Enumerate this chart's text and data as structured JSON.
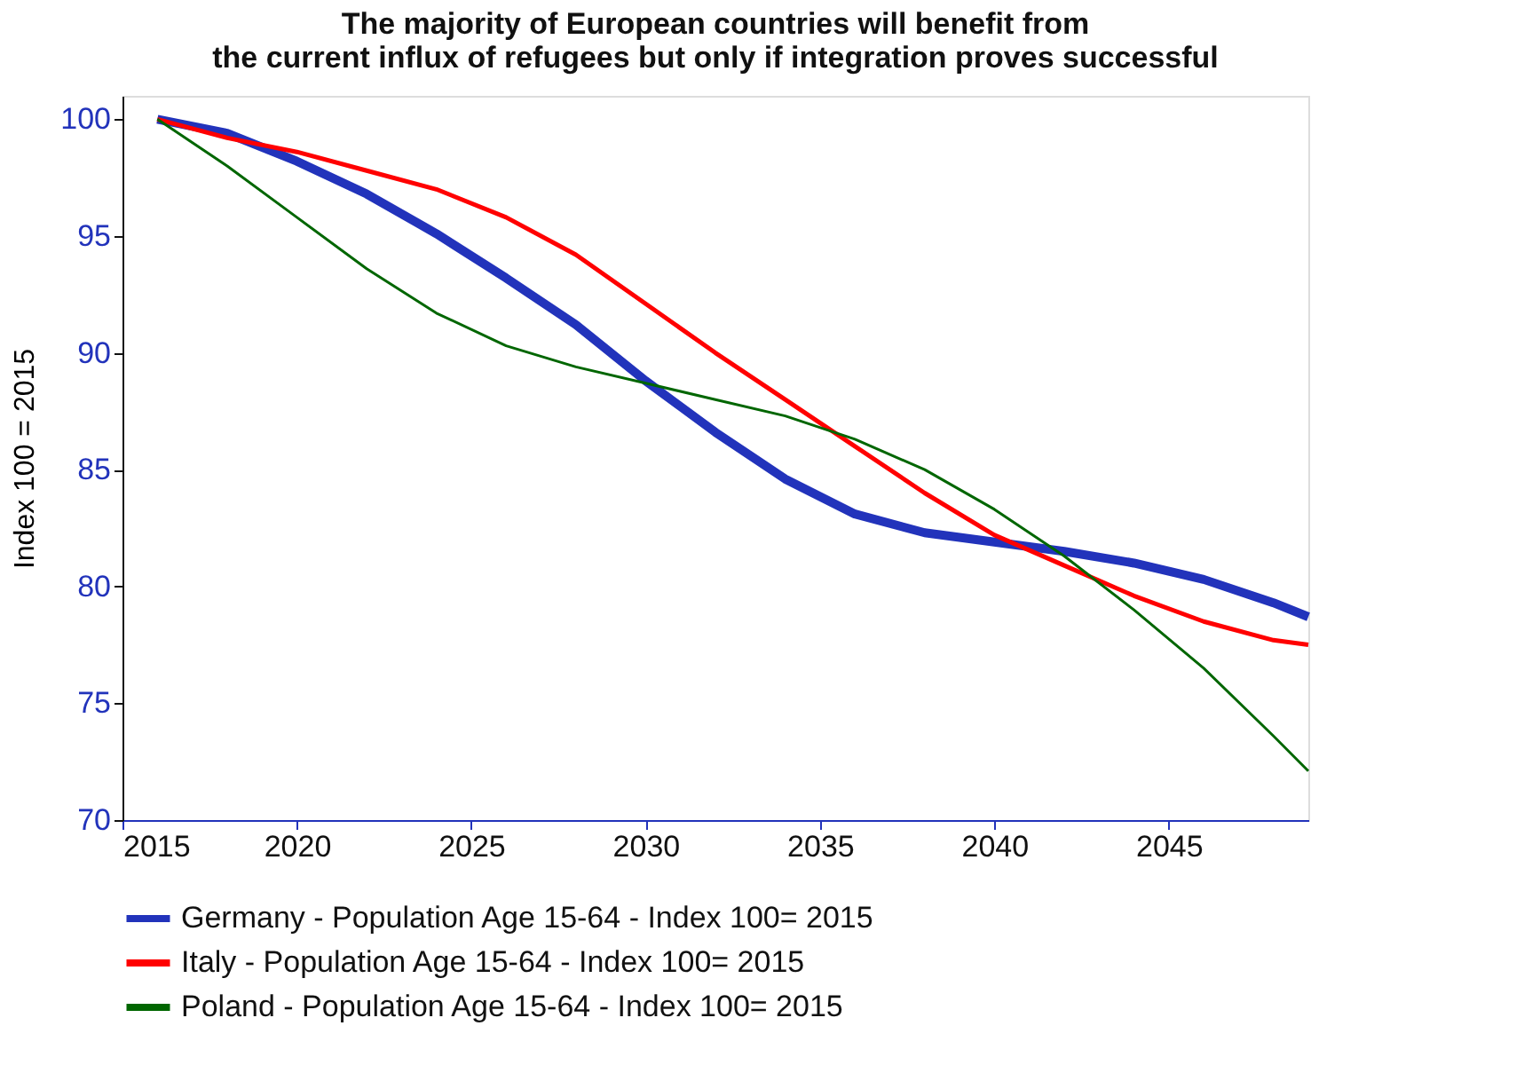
{
  "chart_data": {
    "type": "line",
    "title": [
      "The majority of European countries will benefit from",
      "the current influx of refugees but only if integration proves successful"
    ],
    "ylabel": "Index 100 = 2015",
    "x": [
      2016,
      2018,
      2020,
      2022,
      2024,
      2026,
      2028,
      2030,
      2032,
      2034,
      2036,
      2038,
      2040,
      2042,
      2044,
      2046,
      2048,
      2049
    ],
    "series": [
      {
        "name": "Germany - Population Age 15-64 - Index 100= 2015",
        "color": "#2233bb",
        "values": [
          100,
          99.4,
          98.2,
          96.8,
          95.1,
          93.2,
          91.2,
          88.8,
          86.6,
          84.6,
          83.1,
          82.3,
          81.9,
          81.5,
          81.0,
          80.3,
          79.3,
          78.7
        ]
      },
      {
        "name": "Italy - Population Age 15-64 - Index 100= 2015",
        "color": "#ff0000",
        "values": [
          100,
          99.2,
          98.6,
          97.8,
          97.0,
          95.8,
          94.2,
          92.1,
          90.0,
          88.0,
          86.0,
          84.0,
          82.2,
          80.9,
          79.6,
          78.5,
          77.7,
          77.5
        ]
      },
      {
        "name": "Poland - Population Age 15-64 - Index 100= 2015",
        "color": "#006600",
        "values": [
          100,
          98.0,
          95.8,
          93.6,
          91.7,
          90.3,
          89.4,
          88.7,
          88.0,
          87.3,
          86.3,
          85.0,
          83.3,
          81.3,
          79.0,
          76.5,
          73.6,
          72.1
        ]
      }
    ],
    "xlim": [
      2015,
      2049
    ],
    "ylim": [
      70,
      101
    ],
    "xticks": [
      2015,
      2020,
      2025,
      2030,
      2035,
      2040,
      2045
    ],
    "yticks": [
      70,
      75,
      80,
      85,
      90,
      95,
      100
    ],
    "grid": false,
    "legend": "bottom",
    "marker": "none",
    "line_style": "solid"
  }
}
